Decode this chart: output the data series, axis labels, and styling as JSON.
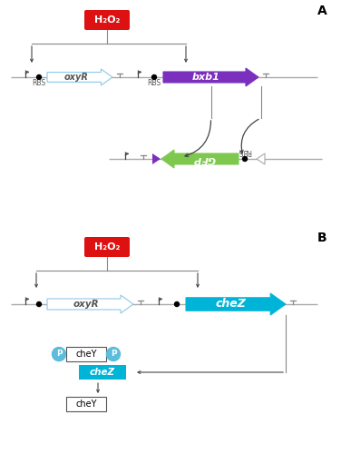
{
  "fig_width": 3.76,
  "fig_height": 5.0,
  "dpi": 100,
  "bg_color": "#ffffff",
  "panel_A_label": "A",
  "panel_B_label": "B",
  "h2o2_color": "#dd1111",
  "h2o2_text": "H₂O₂",
  "oxyr_fill": "#ffffff",
  "oxyr_edge": "#8ec8e8",
  "oxyr_text": "oxyR",
  "bxb1_color": "#7b2fbe",
  "bxb1_text": "bxb1",
  "gfp_color": "#7ec850",
  "gfp_text": "GFP",
  "chez_gene_color": "#00b4d8",
  "chez_text": "cheZ",
  "chez_box_color": "#00b4d8",
  "line_color": "#aaaaaa",
  "ctrl_line_color": "#888888",
  "dark_color": "#444444",
  "rbs_text": "RBS",
  "chey_text": "cheY",
  "p_circle_color": "#5bbcdc"
}
